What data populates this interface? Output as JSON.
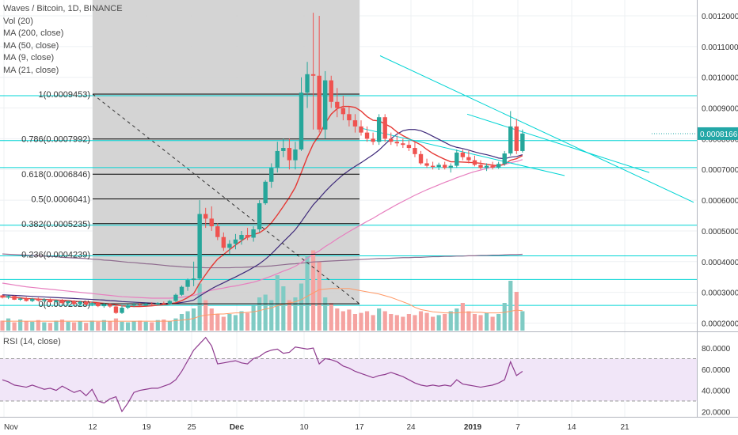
{
  "legend": {
    "title": "Waves / Bitcoin, 1D, BINANCE",
    "studies": [
      "Vol (20)",
      "MA (200, close)",
      "MA (50, close)",
      "MA (9, close)",
      "MA (21, close)"
    ]
  },
  "rsi_label": "RSI (14, close)",
  "price_axis": {
    "ticks": [
      "0.0012000",
      "0.0011000",
      "0.0010000",
      "0.0009000",
      "0.0008000",
      "0.0007000",
      "0.0006000",
      "0.0005000",
      "0.0004000",
      "0.0003000",
      "0.0002000"
    ],
    "current_price": "0.0008166",
    "current_price_color": "#22a7a7"
  },
  "rsi_axis": {
    "ticks": [
      "80.0000",
      "60.0000",
      "40.0000",
      "20.0000"
    ]
  },
  "time_axis": {
    "labels": [
      "Nov",
      "12",
      "19",
      "25",
      "Dec",
      "10",
      "17",
      "24",
      "2019",
      "7",
      "14",
      "21"
    ]
  },
  "fib_levels": [
    {
      "label": "1(0.0009453)",
      "value": 0.0009453
    },
    {
      "label": "0.786(0.0007992)",
      "value": 0.0007992
    },
    {
      "label": "0.618(0.0006846)",
      "value": 0.0006846
    },
    {
      "label": "0.5(0.0006041)",
      "value": 0.0006041
    },
    {
      "label": "0.382(0.0005235)",
      "value": 0.0005235
    },
    {
      "label": "0.236(0.0004239)",
      "value": 0.0004239
    },
    {
      "label": "0(0.0002628)",
      "value": 0.0002628
    }
  ],
  "colors": {
    "up": "#26a69a",
    "down": "#ef5350",
    "cyan_lines": "#00d4d4",
    "fib_line": "#000000",
    "ma200": "#8e6b8e",
    "ma50": "#e77fbf",
    "ma9": "#e53935",
    "ma21": "#3f2a7a",
    "rsi": "#8e3a8e",
    "rsi_band": "#f1e6f8"
  },
  "chart_data": {
    "type": "candlestick",
    "ylim": [
      0.000175,
      0.00125
    ],
    "rsi_ylim": [
      15,
      95
    ],
    "candles": [
      [
        0.00029,
        0.000292,
        0.00028,
        0.000283
      ],
      [
        0.000283,
        0.00029,
        0.000278,
        0.000288
      ],
      [
        0.000288,
        0.00029,
        0.000275,
        0.000276
      ],
      [
        0.000276,
        0.000283,
        0.000272,
        0.00028
      ],
      [
        0.00028,
        0.000285,
        0.00027,
        0.000272
      ],
      [
        0.000272,
        0.000282,
        0.000268,
        0.000279
      ],
      [
        0.000279,
        0.000283,
        0.00027,
        0.000273
      ],
      [
        0.000273,
        0.000281,
        0.000268,
        0.000277
      ],
      [
        0.000277,
        0.00028,
        0.000265,
        0.000268
      ],
      [
        0.000268,
        0.000277,
        0.000263,
        0.000274
      ],
      [
        0.000274,
        0.000278,
        0.000262,
        0.000265
      ],
      [
        0.000265,
        0.000274,
        0.00026,
        0.000271
      ],
      [
        0.000271,
        0.000275,
        0.000258,
        0.000262
      ],
      [
        0.000262,
        0.000272,
        0.000258,
        0.000269
      ],
      [
        0.000269,
        0.000273,
        0.000257,
        0.00026
      ],
      [
        0.00026,
        0.00027,
        0.000255,
        0.000265
      ],
      [
        0.000265,
        0.000268,
        0.000252,
        0.000255
      ],
      [
        0.000255,
        0.000266,
        0.00025,
        0.000262
      ],
      [
        0.000262,
        0.000265,
        0.00025,
        0.000254
      ],
      [
        0.000254,
        0.000262,
        0.00023,
        0.000233
      ],
      [
        0.000233,
        0.000258,
        0.00023,
        0.00025
      ],
      [
        0.00025,
        0.000262,
        0.000245,
        0.000257
      ],
      [
        0.000257,
        0.000266,
        0.000252,
        0.00026
      ],
      [
        0.00026,
        0.000266,
        0.000255,
        0.000258
      ],
      [
        0.000258,
        0.000266,
        0.000255,
        0.000263
      ],
      [
        0.000263,
        0.000268,
        0.000257,
        0.00026
      ],
      [
        0.00026,
        0.000268,
        0.000257,
        0.000265
      ],
      [
        0.000265,
        0.00027,
        0.000258,
        0.000262
      ],
      [
        0.000262,
        0.000275,
        0.00026,
        0.000272
      ],
      [
        0.000272,
        0.000296,
        0.000268,
        0.000292
      ],
      [
        0.000292,
        0.000322,
        0.000288,
        0.000318
      ],
      [
        0.000318,
        0.000345,
        0.000305,
        0.00034
      ],
      [
        0.00034,
        0.0004,
        0.00032,
        0.000345
      ],
      [
        0.000345,
        0.0006,
        0.00034,
        0.000555
      ],
      [
        0.000555,
        0.000575,
        0.00051,
        0.00054
      ],
      [
        0.00054,
        0.00058,
        0.0005,
        0.000515
      ],
      [
        0.000515,
        0.000525,
        0.00047,
        0.00048
      ],
      [
        0.00048,
        0.000495,
        0.000435,
        0.000445
      ],
      [
        0.000445,
        0.00047,
        0.000425,
        0.000458
      ],
      [
        0.000458,
        0.00049,
        0.00044,
        0.000472
      ],
      [
        0.000472,
        0.0005,
        0.000455,
        0.000487
      ],
      [
        0.000487,
        0.00051,
        0.00047,
        0.000478
      ],
      [
        0.000478,
        0.000515,
        0.000465,
        0.000505
      ],
      [
        0.000505,
        0.0006,
        0.000495,
        0.00059
      ],
      [
        0.00059,
        0.000665,
        0.000585,
        0.00066
      ],
      [
        0.00066,
        0.00072,
        0.00064,
        0.000705
      ],
      [
        0.000705,
        0.00079,
        0.00069,
        0.00076
      ],
      [
        0.00076,
        0.0008,
        0.00074,
        0.00077
      ],
      [
        0.00077,
        0.0008,
        0.0007,
        0.00073
      ],
      [
        0.00073,
        0.00079,
        0.0007,
        0.000765
      ],
      [
        0.000765,
        0.001,
        0.00076,
        0.00095
      ],
      [
        0.00095,
        0.00105,
        0.0009,
        0.00101
      ],
      [
        0.00101,
        0.00121,
        0.00083,
        0.001005
      ],
      [
        0.001005,
        0.0012,
        0.00082,
        0.00083
      ],
      [
        0.00083,
        0.00102,
        0.0008,
        0.00099
      ],
      [
        0.00099,
        0.001005,
        0.0009,
        0.00092
      ],
      [
        0.00092,
        0.000965,
        0.00087,
        0.0009
      ],
      [
        0.0009,
        0.00094,
        0.00086,
        0.00088
      ],
      [
        0.00088,
        0.000905,
        0.00084,
        0.00086
      ],
      [
        0.00086,
        0.00088,
        0.00082,
        0.00084
      ],
      [
        0.00084,
        0.00086,
        0.00081,
        0.00082
      ],
      [
        0.00082,
        0.00084,
        0.00079,
        0.0008
      ],
      [
        0.0008,
        0.00082,
        0.00078,
        0.00079
      ],
      [
        0.00079,
        0.00088,
        0.00078,
        0.00087
      ],
      [
        0.00087,
        0.00088,
        0.00079,
        0.0008
      ],
      [
        0.0008,
        0.00082,
        0.00078,
        0.00079
      ],
      [
        0.00079,
        0.00081,
        0.000775,
        0.000785
      ],
      [
        0.000785,
        0.0008,
        0.00077,
        0.00078
      ],
      [
        0.00078,
        0.000795,
        0.00076,
        0.00077
      ],
      [
        0.00077,
        0.00079,
        0.00074,
        0.00075
      ],
      [
        0.00075,
        0.00076,
        0.000715,
        0.00072
      ],
      [
        0.00072,
        0.000735,
        0.000705,
        0.000712
      ],
      [
        0.000712,
        0.000725,
        0.0007,
        0.000708
      ],
      [
        0.000708,
        0.000722,
        0.000698,
        0.000715
      ],
      [
        0.000715,
        0.000725,
        0.0007,
        0.000705
      ],
      [
        0.000705,
        0.00072,
        0.00069,
        0.000712
      ],
      [
        0.000712,
        0.000765,
        0.000705,
        0.000755
      ],
      [
        0.000755,
        0.000765,
        0.00073,
        0.00074
      ],
      [
        0.00074,
        0.00076,
        0.00072,
        0.00073
      ],
      [
        0.00073,
        0.000745,
        0.00071,
        0.000715
      ],
      [
        0.000715,
        0.00073,
        0.0007,
        0.000705
      ],
      [
        0.000705,
        0.00072,
        0.000695,
        0.000712
      ],
      [
        0.000712,
        0.000725,
        0.0007,
        0.000706
      ],
      [
        0.000706,
        0.000725,
        0.000702,
        0.000718
      ],
      [
        0.000718,
        0.00076,
        0.000712,
        0.000752
      ],
      [
        0.000752,
        0.00089,
        0.000745,
        0.00084
      ],
      [
        0.00084,
        0.000865,
        0.00075,
        0.00076
      ],
      [
        0.00076,
        0.00083,
        0.000755,
        0.000817
      ]
    ],
    "volume": [
      0.18,
      0.22,
      0.15,
      0.2,
      0.17,
      0.16,
      0.19,
      0.15,
      0.14,
      0.18,
      0.2,
      0.16,
      0.15,
      0.17,
      0.14,
      0.18,
      0.16,
      0.19,
      0.17,
      0.22,
      0.16,
      0.15,
      0.17,
      0.18,
      0.16,
      0.15,
      0.19,
      0.2,
      0.17,
      0.22,
      0.3,
      0.35,
      0.4,
      0.85,
      0.55,
      0.4,
      0.3,
      0.25,
      0.3,
      0.28,
      0.35,
      0.32,
      0.45,
      0.6,
      0.65,
      0.55,
      1.0,
      0.8,
      0.55,
      0.6,
      0.85,
      1.35,
      1.45,
      1.25,
      0.6,
      0.5,
      0.4,
      0.35,
      0.38,
      0.3,
      0.32,
      0.35,
      0.28,
      0.4,
      0.35,
      0.3,
      0.28,
      0.25,
      0.3,
      0.28,
      0.35,
      0.32,
      0.25,
      0.28,
      0.3,
      0.35,
      0.4,
      0.5,
      0.35,
      0.3,
      0.28,
      0.32,
      0.25,
      0.3,
      0.5,
      0.9,
      0.7,
      0.35
    ],
    "rsi": [
      50,
      48,
      45,
      44,
      43,
      45,
      43,
      41,
      42,
      40,
      44,
      41,
      38,
      40,
      35,
      41,
      30,
      28,
      32,
      34,
      20,
      28,
      38,
      40,
      41,
      42,
      42,
      44,
      46,
      50,
      58,
      68,
      78,
      84,
      90,
      82,
      65,
      66,
      67,
      68,
      66,
      65,
      70,
      72,
      76,
      78,
      79,
      75,
      76,
      81,
      80,
      79,
      80,
      65,
      70,
      69,
      67,
      63,
      61,
      58,
      56,
      54,
      52,
      54,
      55,
      57,
      55,
      53,
      50,
      47,
      45,
      44,
      45,
      44,
      45,
      44,
      50,
      46,
      45,
      44,
      43,
      44,
      45,
      47,
      50,
      67,
      54,
      58
    ],
    "ma9": [
      0.000286,
      0.000285,
      0.000283,
      0.000282,
      0.00028,
      0.000279,
      0.000278,
      0.000277,
      0.000276,
      0.000275,
      0.000274,
      0.000273,
      0.000271,
      0.00027,
      0.000269,
      0.000268,
      0.000266,
      0.000264,
      0.000262,
      0.000259,
      0.000256,
      0.000255,
      0.000254,
      0.000254,
      0.000255,
      0.000256,
      0.000258,
      0.00026,
      0.000262,
      0.000266,
      0.000273,
      0.000283,
      0.000296,
      0.00033,
      0.000358,
      0.000385,
      0.000408,
      0.000423,
      0.000439,
      0.000454,
      0.000468,
      0.000481,
      0.000488,
      0.000494,
      0.000507,
      0.000526,
      0.000552,
      0.00058,
      0.000609,
      0.000642,
      0.00069,
      0.00074,
      0.000783,
      0.000812,
      0.00085,
      0.00088,
      0.000898,
      0.000905,
      0.000905,
      0.000902,
      0.00089,
      0.000872,
      0.00086,
      0.000858,
      0.000848,
      0.000838,
      0.000822,
      0.00081,
      0.0008,
      0.00079,
      0.00078,
      0.000765,
      0.000752,
      0.000742,
      0.000733,
      0.000725,
      0.000725,
      0.000724,
      0.000723,
      0.000722,
      0.00072,
      0.000717,
      0.000714,
      0.000712,
      0.000717,
      0.00073,
      0.000735,
      0.000745
    ],
    "ma21": [
      0.000292,
      0.000291,
      0.00029,
      0.000289,
      0.000288,
      0.000287,
      0.000286,
      0.000285,
      0.000284,
      0.000283,
      0.000282,
      0.000281,
      0.00028,
      0.000279,
      0.000278,
      0.000277,
      0.000276,
      0.000275,
      0.000273,
      0.000272,
      0.00027,
      0.000269,
      0.000268,
      0.000267,
      0.000266,
      0.000265,
      0.000264,
      0.000264,
      0.000264,
      0.000265,
      0.000267,
      0.00027,
      0.000275,
      0.000288,
      0.0003,
      0.000312,
      0.000322,
      0.000331,
      0.000341,
      0.00035,
      0.00036,
      0.00037,
      0.000381,
      0.000393,
      0.000408,
      0.000425,
      0.000445,
      0.000465,
      0.000484,
      0.000504,
      0.00053,
      0.000558,
      0.000585,
      0.000606,
      0.000628,
      0.000648,
      0.000666,
      0.000683,
      0.000697,
      0.00071,
      0.000722,
      0.000735,
      0.000748,
      0.000763,
      0.000782,
      0.0008,
      0.000815,
      0.000826,
      0.00083,
      0.00083,
      0.000826,
      0.000818,
      0.000808,
      0.000798,
      0.000788,
      0.000778,
      0.000772,
      0.000768,
      0.000763,
      0.000757,
      0.000752,
      0.000748,
      0.000743,
      0.000737,
      0.000735,
      0.00074,
      0.000742,
      0.000748
    ],
    "ma50": [
      0.00033,
      0.000327,
      0.000324,
      0.000321,
      0.000318,
      0.000316,
      0.000314,
      0.000312,
      0.00031,
      0.000308,
      0.000306,
      0.000304,
      0.000302,
      0.0003,
      0.000298,
      0.000296,
      0.000294,
      0.000292,
      0.00029,
      0.000288,
      0.000286,
      0.000285,
      0.000284,
      0.000283,
      0.000282,
      0.000281,
      0.000281,
      0.000281,
      0.000281,
      0.000282,
      0.000284,
      0.000287,
      0.00029,
      0.000296,
      0.000302,
      0.000307,
      0.000311,
      0.000314,
      0.000318,
      0.000321,
      0.000325,
      0.000329,
      0.000333,
      0.000339,
      0.000346,
      0.000353,
      0.000361,
      0.000369,
      0.000376,
      0.000385,
      0.000397,
      0.000411,
      0.000424,
      0.000435,
      0.000449,
      0.000461,
      0.000474,
      0.000486,
      0.000498,
      0.000509,
      0.00052,
      0.000531,
      0.000541,
      0.000553,
      0.000564,
      0.000575,
      0.000586,
      0.000596,
      0.000606,
      0.000616,
      0.000625,
      0.000634,
      0.000642,
      0.00065,
      0.000658,
      0.000665,
      0.000673,
      0.00068,
      0.000687,
      0.000693,
      0.000698,
      0.000703,
      0.000708,
      0.000712,
      0.000716,
      0.000722,
      0.000726,
      0.000732
    ],
    "ma200": [
      0.000425,
      0.000424,
      0.000423,
      0.000422,
      0.000421,
      0.00042,
      0.000419,
      0.000418,
      0.000417,
      0.000416,
      0.000414,
      0.000413,
      0.000412,
      0.000411,
      0.00041,
      0.000408,
      0.000407,
      0.000405,
      0.000404,
      0.000402,
      0.0004,
      0.000398,
      0.000397,
      0.000395,
      0.000393,
      0.000392,
      0.00039,
      0.000388,
      0.000386,
      0.000385,
      0.000383,
      0.000382,
      0.000381,
      0.000381,
      0.00038,
      0.00038,
      0.00038,
      0.00038,
      0.00038,
      0.000381,
      0.000381,
      0.000382,
      0.000383,
      0.000384,
      0.000385,
      0.000386,
      0.000388,
      0.00039,
      0.000392,
      0.000393,
      0.000395,
      0.000397,
      0.000399,
      0.0004,
      0.000401,
      0.000402,
      0.000403,
      0.000404,
      0.000405,
      0.000406,
      0.000407,
      0.000408,
      0.000409,
      0.00041,
      0.00041,
      0.000411,
      0.000412,
      0.000413,
      0.000413,
      0.000414,
      0.000414,
      0.000415,
      0.000416,
      0.000416,
      0.000417,
      0.000417,
      0.000418,
      0.000418,
      0.000419,
      0.000419,
      0.00042,
      0.00042,
      0.000421,
      0.000421,
      0.000422,
      0.000423,
      0.000423,
      0.000424
    ],
    "vol_ma": [
      0.17,
      0.17,
      0.17,
      0.17,
      0.17,
      0.17,
      0.17,
      0.17,
      0.17,
      0.17,
      0.17,
      0.17,
      0.17,
      0.17,
      0.17,
      0.17,
      0.17,
      0.17,
      0.17,
      0.17,
      0.17,
      0.17,
      0.17,
      0.17,
      0.17,
      0.17,
      0.17,
      0.17,
      0.17,
      0.18,
      0.19,
      0.2,
      0.22,
      0.26,
      0.28,
      0.29,
      0.3,
      0.3,
      0.31,
      0.32,
      0.32,
      0.33,
      0.34,
      0.36,
      0.39,
      0.41,
      0.45,
      0.48,
      0.5,
      0.52,
      0.56,
      0.62,
      0.68,
      0.74,
      0.75,
      0.76,
      0.76,
      0.76,
      0.76,
      0.74,
      0.72,
      0.7,
      0.68,
      0.66,
      0.63,
      0.6,
      0.56,
      0.52,
      0.48,
      0.42,
      0.38,
      0.36,
      0.34,
      0.33,
      0.32,
      0.32,
      0.32,
      0.33,
      0.33,
      0.33,
      0.33,
      0.32,
      0.32,
      0.32,
      0.33,
      0.35,
      0.37,
      0.36
    ]
  }
}
